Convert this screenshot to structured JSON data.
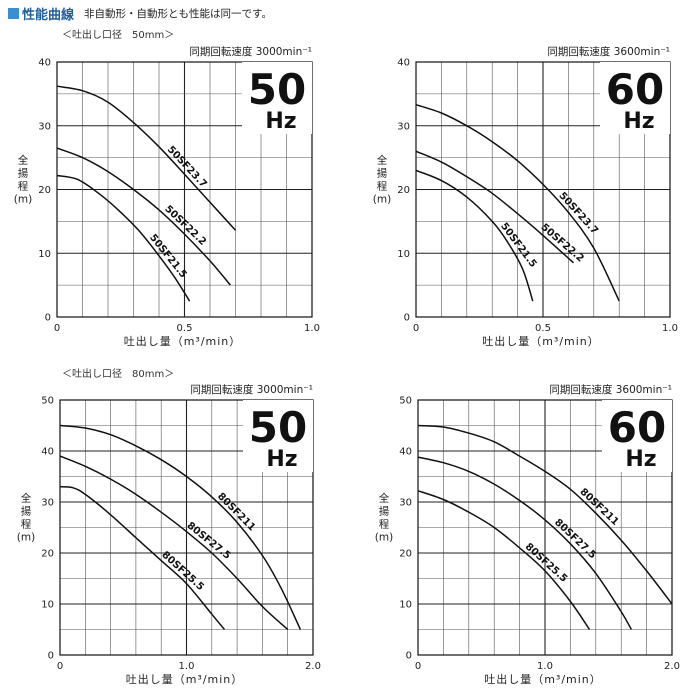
{
  "header": {
    "title": "性能曲線",
    "subtitle": "非自動形・自動形とも性能は同一です。"
  },
  "sections": [
    {
      "bore_label": "＜吐出し口径　50mm＞"
    },
    {
      "bore_label": "＜吐出し口径　80mm＞"
    }
  ],
  "colors": {
    "accent": "#3a8fd0",
    "title": "#1f5f9c",
    "curve": "#111111",
    "grid": "#444444"
  },
  "chart_data": [
    {
      "type": "line",
      "title": "同期回転速度 3000min⁻¹",
      "badge_number": "50",
      "badge_unit": "Hz",
      "xlabel": "吐出し量（m³/min）",
      "ylabel": [
        "全",
        "揚",
        "程",
        "(m)"
      ],
      "xlim": [
        0,
        1.0
      ],
      "ylim": [
        0,
        40
      ],
      "xticks": [
        0,
        0.5,
        1.0
      ],
      "xtick_labels": [
        "0",
        "0.5",
        "1.0"
      ],
      "yticks": [
        0,
        10,
        20,
        30,
        40
      ],
      "series": [
        {
          "name": "50SF23.7",
          "x": [
            0,
            0.1,
            0.2,
            0.3,
            0.4,
            0.5,
            0.6,
            0.7
          ],
          "y": [
            36.2,
            35.5,
            33.7,
            30.5,
            26.7,
            22.4,
            18.0,
            13.6
          ],
          "label_at": 0.42
        },
        {
          "name": "50SF22.2",
          "x": [
            0,
            0.1,
            0.2,
            0.3,
            0.4,
            0.5,
            0.6,
            0.68
          ],
          "y": [
            26.5,
            25.0,
            22.8,
            20.0,
            16.8,
            13.0,
            8.8,
            5.0
          ],
          "label_at": 0.41
        },
        {
          "name": "50SF21.5",
          "x": [
            0,
            0.08,
            0.16,
            0.24,
            0.32,
            0.4,
            0.46,
            0.52
          ],
          "y": [
            22.2,
            21.6,
            19.5,
            16.8,
            13.6,
            9.6,
            6.3,
            2.5
          ],
          "label_at": 0.35
        }
      ]
    },
    {
      "type": "line",
      "title": "同期回転速度 3600min⁻¹",
      "badge_number": "60",
      "badge_unit": "Hz",
      "xlabel": "吐出し量（m³/min）",
      "ylabel": [
        "全",
        "揚",
        "程",
        "(m)"
      ],
      "xlim": [
        0,
        1.0
      ],
      "ylim": [
        0,
        40
      ],
      "xticks": [
        0,
        0.5,
        1.0
      ],
      "xtick_labels": [
        "0",
        "0.5",
        "1.0"
      ],
      "yticks": [
        0,
        10,
        20,
        30,
        40
      ],
      "series": [
        {
          "name": "50SF23.7",
          "x": [
            0,
            0.1,
            0.2,
            0.3,
            0.4,
            0.5,
            0.6,
            0.7,
            0.8
          ],
          "y": [
            33.3,
            32.0,
            30.0,
            27.5,
            24.5,
            20.8,
            16.4,
            10.8,
            2.5
          ],
          "label_at": 0.55
        },
        {
          "name": "50SF22.2",
          "x": [
            0,
            0.1,
            0.2,
            0.3,
            0.4,
            0.5,
            0.62
          ],
          "y": [
            26.0,
            24.3,
            22.0,
            19.4,
            16.2,
            12.8,
            8.5
          ],
          "label_at": 0.48
        },
        {
          "name": "50SF21.5",
          "x": [
            0,
            0.1,
            0.2,
            0.3,
            0.36,
            0.42,
            0.46
          ],
          "y": [
            23.0,
            21.4,
            18.8,
            15.0,
            11.8,
            7.5,
            2.5
          ],
          "label_at": 0.32
        }
      ]
    },
    {
      "type": "line",
      "title": "同期回転速度 3000min⁻¹",
      "badge_number": "50",
      "badge_unit": "Hz",
      "xlabel": "吐出し量（m³/min）",
      "ylabel": [
        "全",
        "揚",
        "程",
        "(m)"
      ],
      "xlim": [
        0,
        2.0
      ],
      "ylim": [
        0,
        50
      ],
      "xticks": [
        0,
        1.0,
        2.0
      ],
      "xtick_labels": [
        "0",
        "1.0",
        "2.0"
      ],
      "yticks": [
        0,
        10,
        20,
        30,
        40,
        50
      ],
      "series": [
        {
          "name": "80SF211",
          "x": [
            0,
            0.2,
            0.4,
            0.6,
            0.8,
            1.0,
            1.2,
            1.4,
            1.6,
            1.75,
            1.9
          ],
          "y": [
            45.0,
            44.5,
            43.2,
            41.0,
            38.3,
            35.0,
            31.0,
            26.0,
            19.5,
            13.0,
            5.0
          ],
          "label_at": 1.22
        },
        {
          "name": "80SF27.5",
          "x": [
            0,
            0.2,
            0.4,
            0.6,
            0.8,
            1.0,
            1.2,
            1.4,
            1.6,
            1.8
          ],
          "y": [
            39.0,
            37.0,
            34.5,
            31.5,
            28.0,
            24.2,
            20.0,
            15.0,
            9.5,
            5.0
          ],
          "label_at": 0.98
        },
        {
          "name": "80SF25.5",
          "x": [
            0,
            0.1,
            0.2,
            0.4,
            0.6,
            0.8,
            1.0,
            1.2,
            1.3
          ],
          "y": [
            33.0,
            32.8,
            31.5,
            27.5,
            23.0,
            18.5,
            14.0,
            8.0,
            5.0
          ],
          "label_at": 0.78
        }
      ]
    },
    {
      "type": "line",
      "title": "同期回転速度 3600min⁻¹",
      "badge_number": "60",
      "badge_unit": "Hz",
      "xlabel": "吐出し量（m³/min）",
      "ylabel": [
        "全",
        "揚",
        "程",
        "(m)"
      ],
      "xlim": [
        0,
        2.0
      ],
      "ylim": [
        0,
        50
      ],
      "xticks": [
        0,
        1.0,
        2.0
      ],
      "xtick_labels": [
        "0",
        "1.0",
        "2.0"
      ],
      "yticks": [
        0,
        10,
        20,
        30,
        40,
        50
      ],
      "series": [
        {
          "name": "80SF211",
          "x": [
            0,
            0.2,
            0.4,
            0.6,
            0.8,
            1.0,
            1.2,
            1.4,
            1.6,
            1.8,
            2.0
          ],
          "y": [
            45.0,
            44.7,
            43.5,
            41.8,
            39.0,
            36.0,
            32.5,
            27.8,
            22.5,
            16.5,
            10.0
          ],
          "label_at": 1.25
        },
        {
          "name": "80SF27.5",
          "x": [
            0,
            0.2,
            0.4,
            0.6,
            0.8,
            1.0,
            1.2,
            1.4,
            1.6,
            1.68
          ],
          "y": [
            38.8,
            37.7,
            36.0,
            33.5,
            30.3,
            26.5,
            21.8,
            16.0,
            8.5,
            5.0
          ],
          "label_at": 1.05
        },
        {
          "name": "80SF25.5",
          "x": [
            0,
            0.2,
            0.4,
            0.6,
            0.8,
            1.0,
            1.2,
            1.35
          ],
          "y": [
            32.2,
            30.5,
            28.0,
            25.0,
            21.0,
            16.5,
            10.5,
            5.0
          ],
          "label_at": 0.82
        }
      ]
    }
  ]
}
